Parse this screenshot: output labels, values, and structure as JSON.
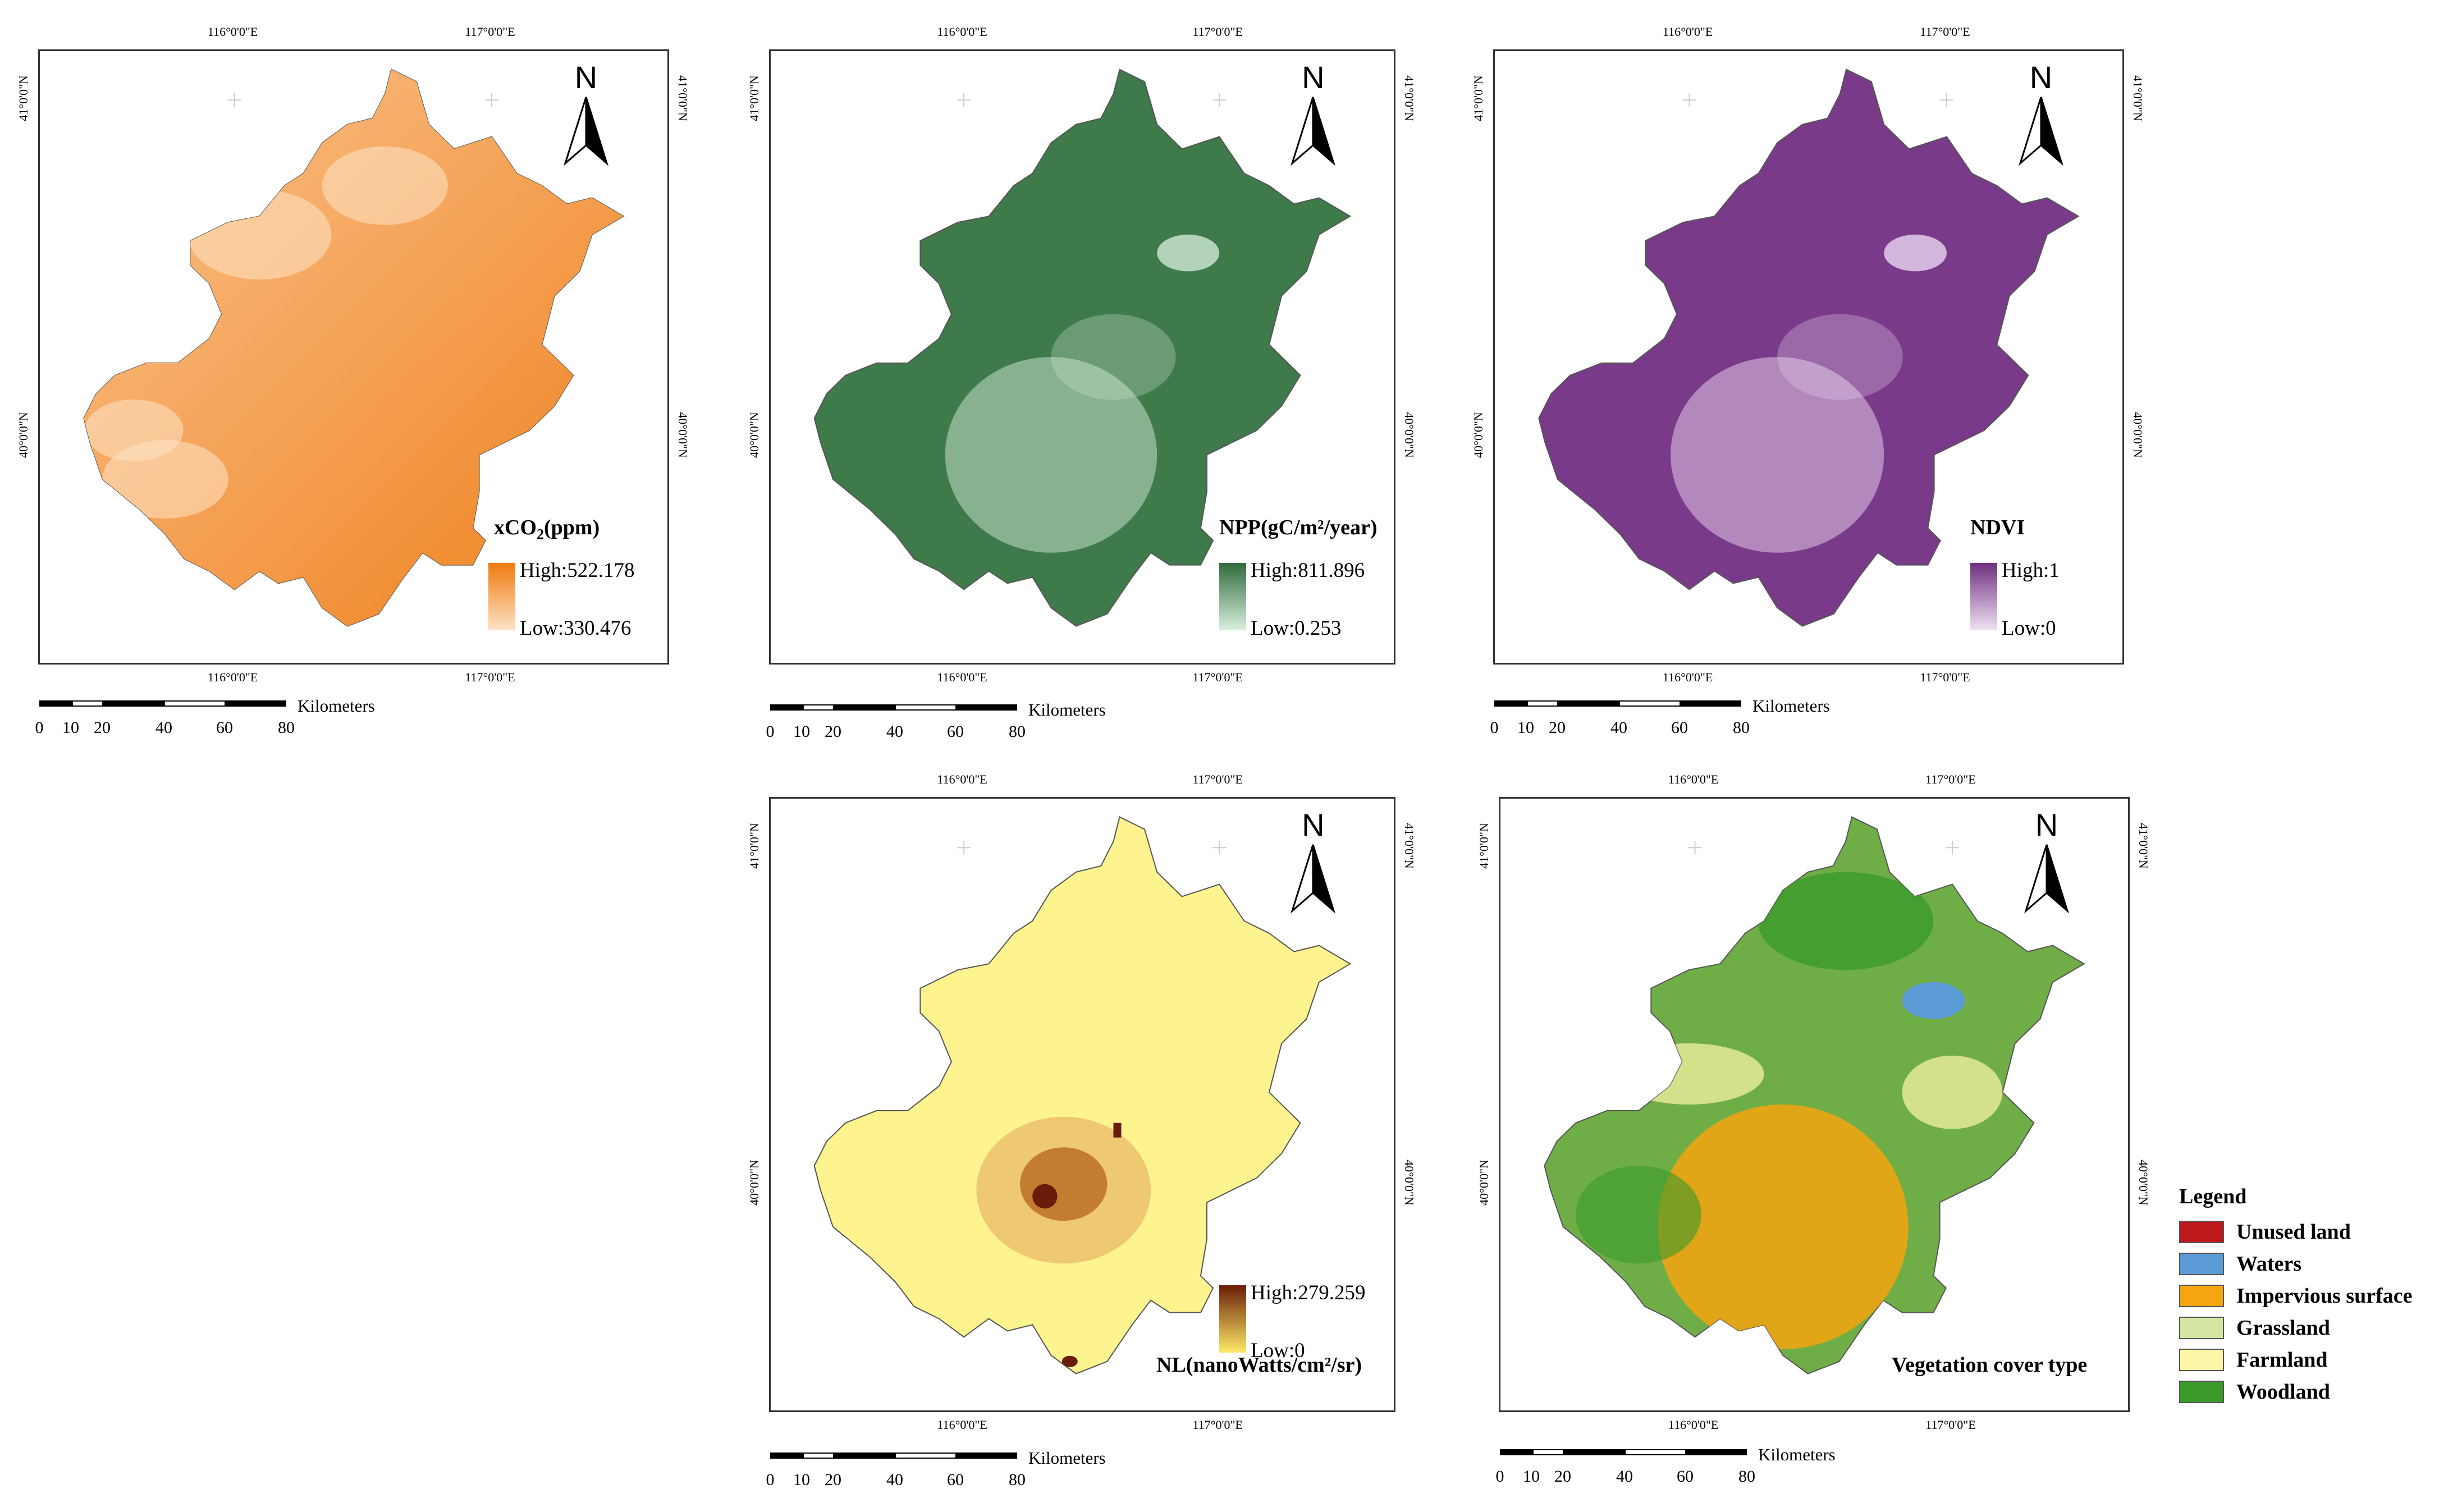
{
  "coords": {
    "lon_116": "116°0'0\"E",
    "lon_117": "117°0'0\"E",
    "lat_41": "41°0'0\"N",
    "lat_40": "40°0'0\"N"
  },
  "north_label": "N",
  "scale": {
    "unit": "Kilometers",
    "ticks": [
      "0",
      "10",
      "20",
      "40",
      "60",
      "80"
    ]
  },
  "panels": {
    "xco2": {
      "title_main": "xCO",
      "title_sub": "2",
      "title_rest": "(ppm)",
      "high": "High:522.178",
      "low": "Low:330.476",
      "colors": {
        "high": "#f07a0f",
        "low": "#fde2c6",
        "fill": "#f08a2e"
      }
    },
    "npp": {
      "title": "NPP(gC/m²/year)",
      "high": "High:811.896",
      "low": "Low:0.253",
      "colors": {
        "high": "#2f6b3c",
        "low": "#d9efde",
        "fill": "#3e7a4a"
      }
    },
    "ndvi": {
      "title": "NDVI",
      "high": "High:1",
      "low": "Low:0",
      "colors": {
        "high": "#6e2f7f",
        "low": "#efe1f2",
        "fill": "#7a3a8a"
      }
    },
    "nl": {
      "title": "NL(nanoWatts/cm²/sr)",
      "high": "High:279.259",
      "low": "Low:0",
      "colors": {
        "high": "#6a1c08",
        "low": "#fdea66",
        "fill": "#fdf490"
      }
    },
    "veg": {
      "title": "Vegetation cover type",
      "colors": {
        "fill": "#6fae46"
      }
    }
  },
  "legend": {
    "title": "Legend",
    "items": [
      {
        "label": "Unused land",
        "color": "#c0191d"
      },
      {
        "label": "Waters",
        "color": "#5b9bd5"
      },
      {
        "label": "Impervious surface",
        "color": "#f5a50f"
      },
      {
        "label": "Grassland",
        "color": "#d3e7a0"
      },
      {
        "label": "Farmland",
        "color": "#fdf6a6"
      },
      {
        "label": "Woodland",
        "color": "#3a9a2a"
      }
    ]
  }
}
